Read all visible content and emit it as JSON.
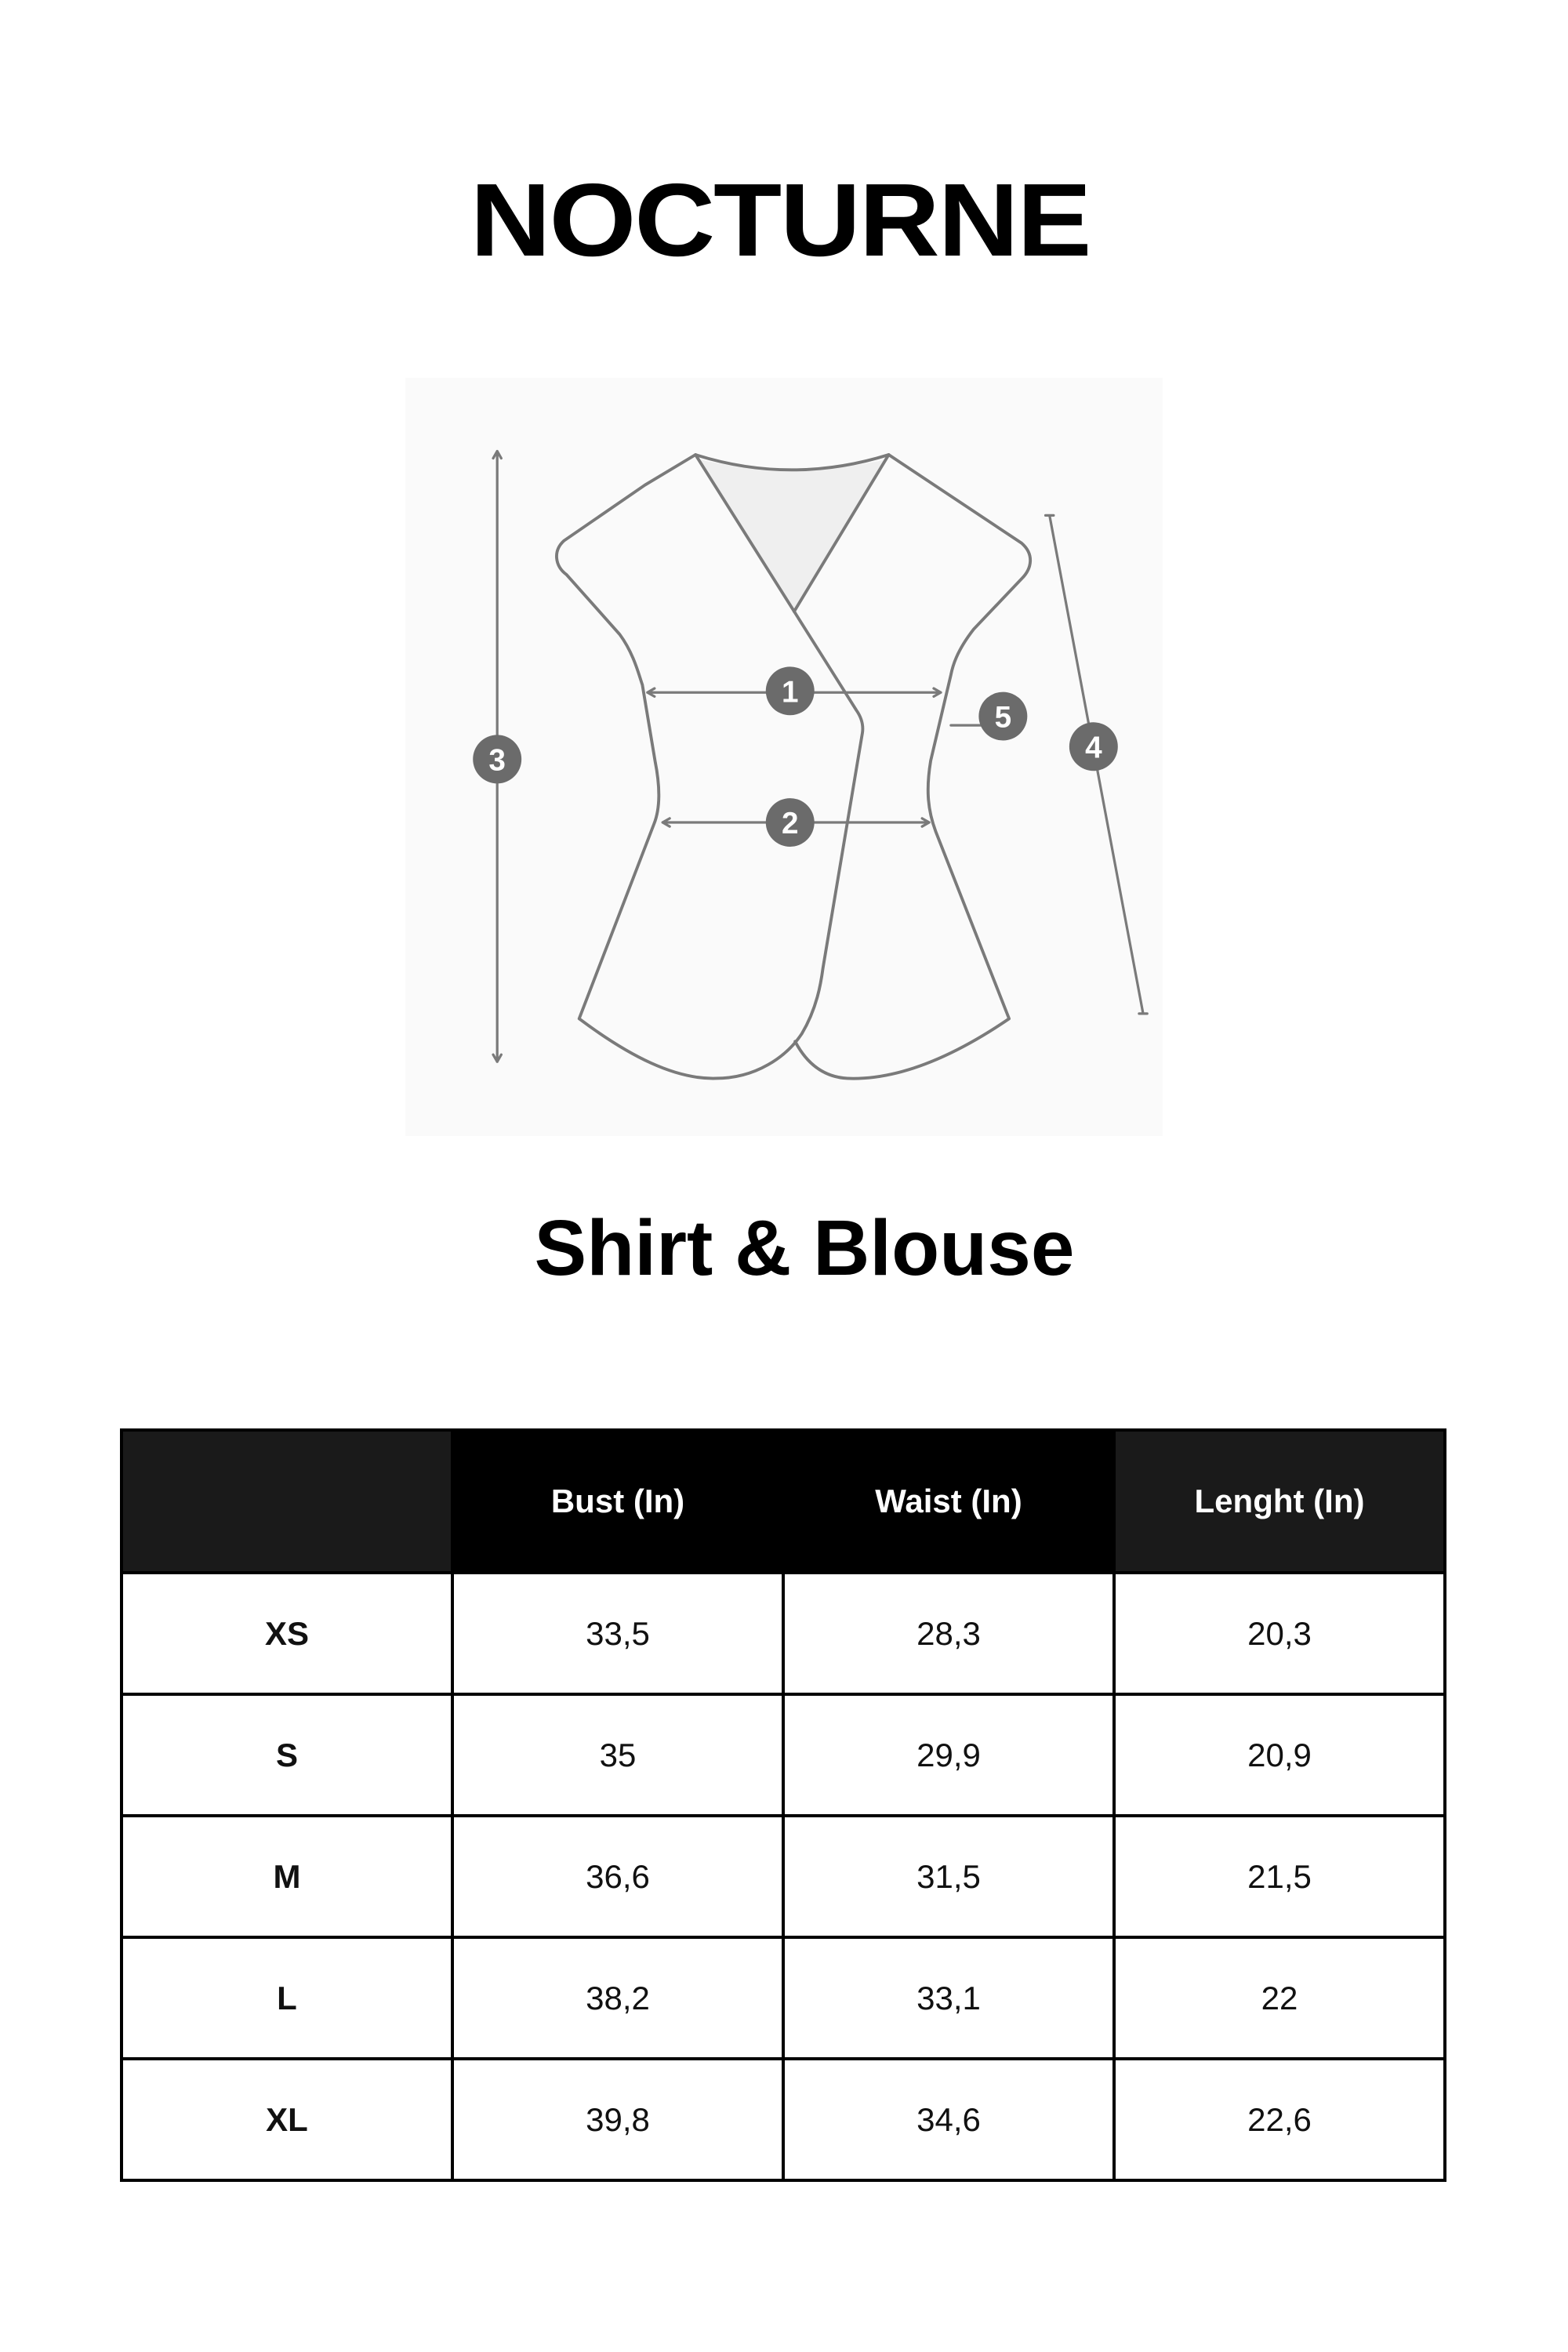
{
  "brand": "NOCTURNE",
  "diagram": {
    "labels": [
      "1",
      "2",
      "3",
      "4",
      "5"
    ],
    "line_color": "#7a7a7a",
    "marker_color": "#6b6b6b",
    "neck_fill": "#efefef"
  },
  "title": "Shirt & Blouse",
  "table": {
    "headers": [
      "",
      "Bust (In)",
      "Waist (In)",
      "Lenght (In)"
    ],
    "rows": [
      {
        "size": "XS",
        "bust": "33,5",
        "waist": "28,3",
        "length": "20,3"
      },
      {
        "size": "S",
        "bust": "35",
        "waist": "29,9",
        "length": "20,9"
      },
      {
        "size": "M",
        "bust": "36,6",
        "waist": "31,5",
        "length": "21,5"
      },
      {
        "size": "L",
        "bust": "38,2",
        "waist": "33,1",
        "length": "22"
      },
      {
        "size": "XL",
        "bust": "39,8",
        "waist": "34,6",
        "length": "22,6"
      }
    ]
  }
}
